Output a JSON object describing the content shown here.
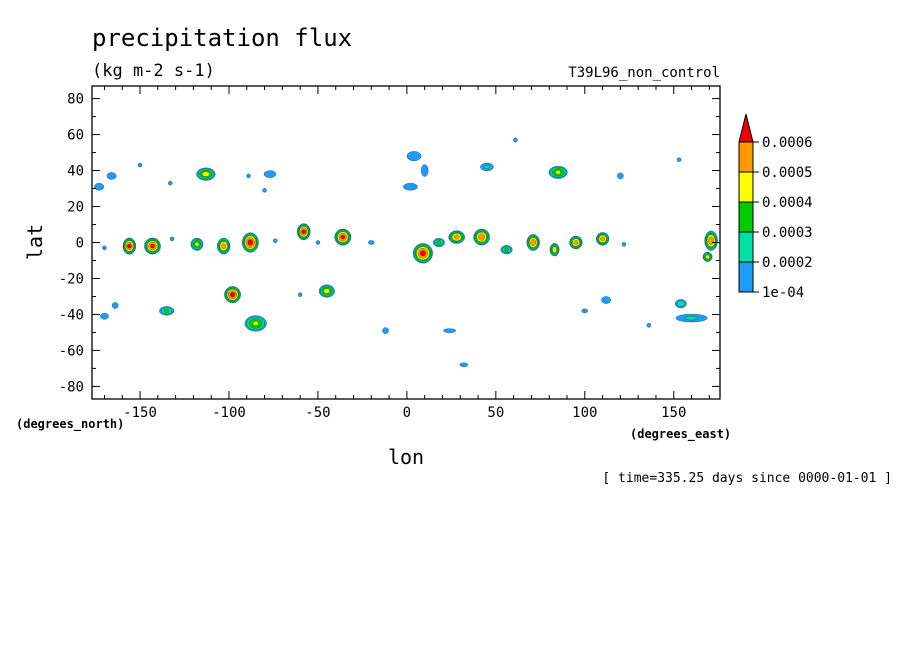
{
  "chart_data": {
    "type": "contour",
    "title": "precipitation flux",
    "units": "(kg m-2 s-1)",
    "run_label": "T39L96_non_control",
    "xlabel": "lon",
    "ylabel": "lat",
    "x_units": "(degrees_east)",
    "y_units": "(degrees_north)",
    "footer": "[ time=335.25 days since 0000-01-01 ]",
    "xlim": [
      -177,
      176
    ],
    "ylim": [
      -87,
      87
    ],
    "x_ticks": [
      -150,
      -100,
      -50,
      0,
      50,
      100,
      150
    ],
    "x_tick_labels": [
      "-150",
      "-100",
      "-50",
      "0",
      "50",
      "100",
      "150"
    ],
    "y_ticks": [
      -80,
      -60,
      -40,
      -20,
      0,
      20,
      40,
      60,
      80
    ],
    "y_tick_labels": [
      "-80",
      "-60",
      "-40",
      "-20",
      "0",
      "20",
      "40",
      "60",
      "80"
    ],
    "levels": [
      0.0001,
      0.0002,
      0.0003,
      0.0004,
      0.0005,
      0.0006
    ],
    "level_labels": [
      "1e-04",
      "0.0002",
      "0.0003",
      "0.0004",
      "0.0005",
      "0.0006"
    ],
    "level_colors": [
      "#1e9bff",
      "#00e0a0",
      "#00cc00",
      "#ffff00",
      "#ff9900",
      "#ee0000"
    ],
    "grid": false,
    "legend_position": "right",
    "cells": [
      {
        "lon": -156,
        "lat": -2,
        "peak": 0.00062,
        "rx": 4,
        "ry": 5
      },
      {
        "lon": -143,
        "lat": -2,
        "peak": 0.00062,
        "rx": 5,
        "ry": 5
      },
      {
        "lon": -118,
        "lat": -1,
        "peak": 0.00042,
        "rx": 4,
        "ry": 4
      },
      {
        "lon": -103,
        "lat": -2,
        "peak": 0.00055,
        "rx": 4,
        "ry": 5
      },
      {
        "lon": -88,
        "lat": 0,
        "peak": 0.00065,
        "rx": 5,
        "ry": 6
      },
      {
        "lon": -58,
        "lat": 6,
        "peak": 0.00063,
        "rx": 4,
        "ry": 5
      },
      {
        "lon": -36,
        "lat": 3,
        "peak": 0.00063,
        "rx": 5,
        "ry": 5
      },
      {
        "lon": 9,
        "lat": -6,
        "peak": 0.00064,
        "rx": 6,
        "ry": 6
      },
      {
        "lon": 28,
        "lat": 3,
        "peak": 0.00055,
        "rx": 5,
        "ry": 4
      },
      {
        "lon": 42,
        "lat": 3,
        "peak": 0.00058,
        "rx": 5,
        "ry": 5
      },
      {
        "lon": 71,
        "lat": 0,
        "peak": 0.00058,
        "rx": 4,
        "ry": 5
      },
      {
        "lon": 83,
        "lat": -4,
        "peak": 0.00048,
        "rx": 3,
        "ry": 4
      },
      {
        "lon": 95,
        "lat": 0,
        "peak": 0.00055,
        "rx": 4,
        "ry": 4
      },
      {
        "lon": 110,
        "lat": 2,
        "peak": 0.00055,
        "rx": 4,
        "ry": 4
      },
      {
        "lon": 171,
        "lat": 1,
        "peak": 0.00058,
        "rx": 4,
        "ry": 6
      },
      {
        "lon": 169,
        "lat": -8,
        "peak": 0.00045,
        "rx": 3,
        "ry": 3
      },
      {
        "lon": 56,
        "lat": -4,
        "peak": 0.0003,
        "rx": 4,
        "ry": 3
      },
      {
        "lon": 18,
        "lat": 0,
        "peak": 0.0003,
        "rx": 4,
        "ry": 3
      },
      {
        "lon": -98,
        "lat": -29,
        "peak": 0.00065,
        "rx": 5,
        "ry": 5
      },
      {
        "lon": -45,
        "lat": -27,
        "peak": 0.00045,
        "rx": 5,
        "ry": 4
      },
      {
        "lon": -113,
        "lat": 38,
        "peak": 0.00045,
        "rx": 6,
        "ry": 4
      },
      {
        "lon": 85,
        "lat": 39,
        "peak": 0.00042,
        "rx": 6,
        "ry": 4
      },
      {
        "lon": -85,
        "lat": -45,
        "peak": 0.00042,
        "rx": 7,
        "ry": 5
      },
      {
        "lon": -135,
        "lat": -38,
        "peak": 0.00032,
        "rx": 5,
        "ry": 3
      },
      {
        "lon": -50,
        "lat": 0,
        "peak": 0.00015,
        "rx": 2,
        "ry": 2
      },
      {
        "lon": -20,
        "lat": 0,
        "peak": 0.00015,
        "rx": 3,
        "ry": 2
      },
      {
        "lon": -170,
        "lat": -3,
        "peak": 0.00015,
        "rx": 2,
        "ry": 2
      },
      {
        "lon": -132,
        "lat": 2,
        "peak": 0.00015,
        "rx": 2,
        "ry": 2
      },
      {
        "lon": -74,
        "lat": 1,
        "peak": 0.00015,
        "rx": 2,
        "ry": 2
      },
      {
        "lon": 122,
        "lat": -1,
        "peak": 0.00015,
        "rx": 2,
        "ry": 2
      },
      {
        "lon": 154,
        "lat": -34,
        "peak": 0.00028,
        "rx": 4,
        "ry": 3
      },
      {
        "lon": -164,
        "lat": -35,
        "peak": 0.00015,
        "rx": 3,
        "ry": 3
      },
      {
        "lon": 120,
        "lat": 37,
        "peak": 0.00015,
        "rx": 3,
        "ry": 3
      },
      {
        "lon": 45,
        "lat": 42,
        "peak": 0.00022,
        "rx": 5,
        "ry": 3
      },
      {
        "lon": -77,
        "lat": 38,
        "peak": 0.00018,
        "rx": 5,
        "ry": 3
      },
      {
        "lon": 112,
        "lat": -32,
        "peak": 0.00018,
        "rx": 4,
        "ry": 3
      },
      {
        "lon": 24,
        "lat": -49,
        "peak": 0.00015,
        "rx": 6,
        "ry": 2
      },
      {
        "lon": 32,
        "lat": -68,
        "peak": 0.00015,
        "rx": 4,
        "ry": 2
      },
      {
        "lon": -12,
        "lat": -49,
        "peak": 0.00015,
        "rx": 3,
        "ry": 3
      },
      {
        "lon": -60,
        "lat": -29,
        "peak": 0.00015,
        "rx": 2,
        "ry": 2
      },
      {
        "lon": 100,
        "lat": -38,
        "peak": 0.00015,
        "rx": 3,
        "ry": 2
      },
      {
        "lon": -80,
        "lat": 29,
        "peak": 0.00015,
        "rx": 2,
        "ry": 2
      },
      {
        "lon": 136,
        "lat": -46,
        "peak": 0.00015,
        "rx": 2,
        "ry": 2
      },
      {
        "lon": -150,
        "lat": 43,
        "peak": 0.00015,
        "rx": 1,
        "ry": 1
      },
      {
        "lon": 153,
        "lat": 46,
        "peak": 0.00015,
        "rx": 2,
        "ry": 1
      },
      {
        "lon": 61,
        "lat": 57,
        "peak": 0.00015,
        "rx": 2,
        "ry": 1
      },
      {
        "lon": -89,
        "lat": 37,
        "peak": 0.00015,
        "rx": 2,
        "ry": 2
      },
      {
        "lon": -133,
        "lat": 33,
        "peak": 0.00015,
        "rx": 2,
        "ry": 2
      },
      {
        "lon": 4,
        "lat": 48,
        "peak": 0.00018,
        "rx": 6,
        "ry": 4
      },
      {
        "lon": 2,
        "lat": 31,
        "peak": 0.00018,
        "rx": 6,
        "ry": 3
      },
      {
        "lon": 10,
        "lat": 40,
        "peak": 0.00018,
        "rx": 3,
        "ry": 5
      },
      {
        "lon": -173,
        "lat": 31,
        "peak": 0.00018,
        "rx": 4,
        "ry": 3
      },
      {
        "lon": -166,
        "lat": 37,
        "peak": 0.00018,
        "rx": 4,
        "ry": 3
      },
      {
        "lon": 160,
        "lat": -42,
        "peak": 0.00022,
        "rx": 12,
        "ry": 3
      },
      {
        "lon": -170,
        "lat": -41,
        "peak": 0.00015,
        "rx": 4,
        "ry": 3
      }
    ]
  }
}
